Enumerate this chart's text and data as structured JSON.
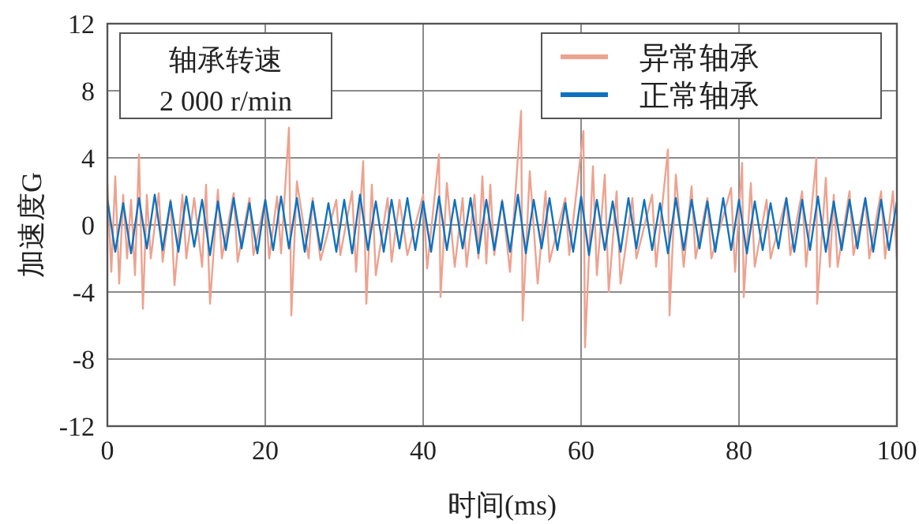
{
  "chart_data": {
    "type": "line",
    "xlabel": "时间(ms)",
    "ylabel": "加速度G",
    "xlim": [
      0,
      100
    ],
    "ylim": [
      -12,
      12
    ],
    "xticks": [
      0,
      20,
      40,
      60,
      80,
      100
    ],
    "yticks": [
      -12,
      -8,
      -4,
      0,
      4,
      8,
      12
    ],
    "grid": true,
    "legend": "top right",
    "annotations": [
      "轴承转速",
      "2 000 r/min"
    ],
    "series": [
      {
        "name": "异常轴承",
        "color": "#eda28f",
        "x": [
          0,
          0.5,
          1,
          1.5,
          2,
          2.5,
          3,
          3.5,
          4,
          4.5,
          5,
          5.5,
          6.5,
          7,
          8,
          8.5,
          9.5,
          10,
          11,
          12,
          12.5,
          13,
          14,
          14.5,
          16,
          16.5,
          18,
          18.5,
          20,
          20.5,
          21.5,
          22,
          23,
          23.3,
          24,
          25.5,
          26,
          27,
          29,
          29.5,
          31,
          31.5,
          32.4,
          32.8,
          33.5,
          34,
          35.5,
          36,
          37,
          38,
          40,
          40.5,
          42,
          42.2,
          43,
          44,
          45,
          45.5,
          46.5,
          47,
          47.5,
          48,
          48.5,
          49,
          50,
          51,
          52.4,
          52.6,
          53.5,
          54.5,
          55.5,
          56,
          58,
          58.5,
          60.3,
          60.5,
          61.5,
          62,
          63,
          63.5,
          64.5,
          65,
          66.5,
          67,
          69,
          69.5,
          71,
          71.2,
          72,
          73,
          74,
          74.5,
          76,
          76.5,
          79,
          79.5,
          80.4,
          80.6,
          81.5,
          82,
          83.5,
          84,
          86,
          86.5,
          88,
          88.5,
          89.8,
          89.9,
          91,
          91.5,
          92,
          92.5,
          94,
          94.5,
          96,
          96.5,
          98,
          98.5,
          99.5,
          100
        ],
        "values": [
          2.5,
          -2.8,
          2.9,
          -3.5,
          1.8,
          -2,
          1.5,
          -3,
          4.2,
          -5,
          1.8,
          -2,
          1.9,
          -2.2,
          1.5,
          -3.6,
          1.8,
          -2,
          1.6,
          -2.5,
          2.4,
          -4.7,
          2.1,
          -2,
          1.9,
          -2.2,
          1.6,
          -1.8,
          1.5,
          -2,
          1.7,
          -1.7,
          5.8,
          -5.4,
          2.6,
          -2,
          1.6,
          -2.1,
          1.5,
          -1.8,
          2,
          -2.8,
          3.8,
          -4.7,
          2.4,
          -3,
          1.6,
          -2.2,
          1.5,
          -1.8,
          1.8,
          -2.6,
          4.2,
          -4.3,
          2.5,
          -2.5,
          1.6,
          -2.5,
          1.8,
          -2,
          2.9,
          -2.3,
          2.4,
          -1.8,
          1.5,
          -2.8,
          6.8,
          -5.7,
          3.2,
          -3.5,
          2,
          -2.2,
          1.6,
          -1.8,
          5.6,
          -7.3,
          3.5,
          -3,
          3,
          -4,
          2,
          -3.5,
          1.6,
          -2,
          1.8,
          -2.5,
          4.5,
          -5.4,
          3,
          -2.5,
          2.3,
          -2,
          1.6,
          -2,
          2.2,
          -2.8,
          3.7,
          -4.3,
          2.5,
          -2.5,
          1.5,
          -2,
          1.6,
          -1.8,
          2,
          -2.5,
          4,
          -4.7,
          2.8,
          -2.5,
          1.8,
          -2.5,
          2,
          -1.8,
          1.6,
          -2,
          2,
          -2,
          2,
          -2
        ]
      },
      {
        "name": "正常轴承",
        "color": "#0e72c0",
        "x": [
          0,
          1,
          2,
          3,
          4,
          5,
          6,
          7,
          8,
          9,
          10,
          11,
          12,
          13,
          14,
          15,
          16,
          17,
          18,
          19,
          20,
          21,
          22,
          23,
          24,
          25,
          26,
          27,
          28,
          29,
          30,
          31,
          32,
          33,
          34,
          35,
          36,
          37,
          38,
          39,
          40,
          41,
          42,
          43,
          44,
          45,
          46,
          47,
          48,
          49,
          50,
          51,
          52,
          53,
          54,
          55,
          56,
          57,
          58,
          59,
          60,
          61,
          62,
          63,
          64,
          65,
          66,
          67,
          68,
          69,
          70,
          71,
          72,
          73,
          74,
          75,
          76,
          77,
          78,
          79,
          80,
          81,
          82,
          83,
          84,
          85,
          86,
          87,
          88,
          89,
          90,
          91,
          92,
          93,
          94,
          95,
          96,
          97,
          98,
          99,
          100
        ],
        "values": [
          1.5,
          -1.6,
          1.3,
          -1.7,
          1.6,
          -1.4,
          1.8,
          -1.5,
          1.4,
          -1.6,
          1.7,
          -1.3,
          1.5,
          -1.8,
          1.4,
          -1.5,
          1.6,
          -1.4,
          1.3,
          -1.7,
          1.5,
          -1.5,
          1.7,
          -1.4,
          1.6,
          -1.6,
          1.4,
          -1.5,
          1.3,
          -1.6,
          1.5,
          -1.7,
          1.8,
          -1.5,
          1.4,
          -1.6,
          1.5,
          -1.4,
          1.6,
          -1.5,
          1.4,
          -1.6,
          1.7,
          -1.5,
          1.5,
          -1.4,
          1.6,
          -1.7,
          1.5,
          -1.5,
          1.4,
          -1.6,
          1.8,
          -1.7,
          1.5,
          -1.4,
          1.6,
          -1.5,
          1.3,
          -1.6,
          1.7,
          -1.8,
          1.5,
          -1.5,
          1.4,
          -1.6,
          1.6,
          -1.4,
          1.5,
          -1.5,
          1.3,
          -1.7,
          1.6,
          -1.5,
          1.5,
          -1.4,
          1.4,
          -1.6,
          1.6,
          -1.5,
          1.5,
          -1.7,
          1.4,
          -1.5,
          1.3,
          -1.4,
          1.6,
          -1.6,
          1.5,
          -1.5,
          1.7,
          -1.6,
          1.4,
          -1.5,
          1.5,
          -1.4,
          1.6,
          -1.6,
          1.5,
          -1.5,
          1.4
        ]
      }
    ]
  }
}
